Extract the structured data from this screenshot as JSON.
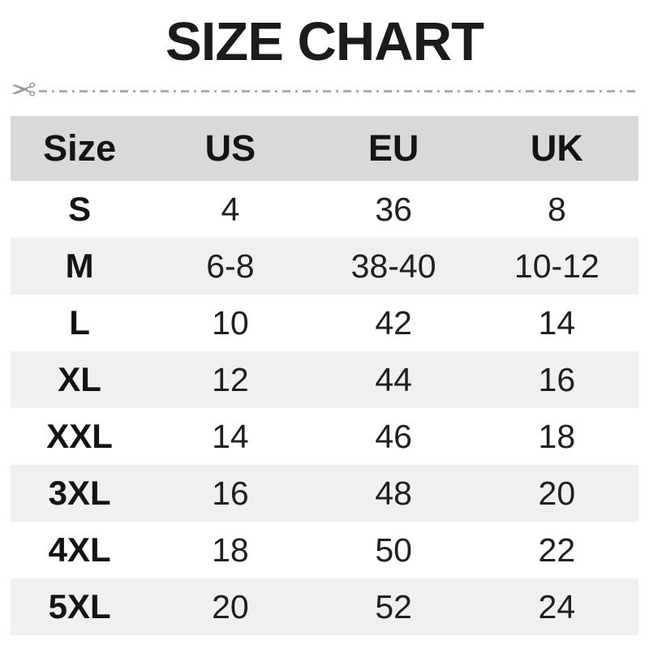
{
  "title": "SIZE CHART",
  "cut_line": {
    "scissors_glyph": "✂"
  },
  "chart_data": {
    "type": "table",
    "title": "SIZE CHART",
    "columns": [
      "Size",
      "US",
      "EU",
      "UK"
    ],
    "rows": [
      [
        "S",
        "4",
        "36",
        "8"
      ],
      [
        "M",
        "6-8",
        "38-40",
        "10-12"
      ],
      [
        "L",
        "10",
        "42",
        "14"
      ],
      [
        "XL",
        "12",
        "44",
        "16"
      ],
      [
        "XXL",
        "14",
        "46",
        "18"
      ],
      [
        "3XL",
        "16",
        "48",
        "20"
      ],
      [
        "4XL",
        "18",
        "50",
        "22"
      ],
      [
        "5XL",
        "20",
        "52",
        "24"
      ]
    ],
    "layout": {
      "header_bg": "#d9d9d9",
      "alt_row_bg": "#f0f0ef",
      "white_row_bg": "#ffffff",
      "text_color": "#1b1b1b",
      "cutline_color": "#ababab",
      "alternating_rows": true,
      "grid": false
    }
  }
}
